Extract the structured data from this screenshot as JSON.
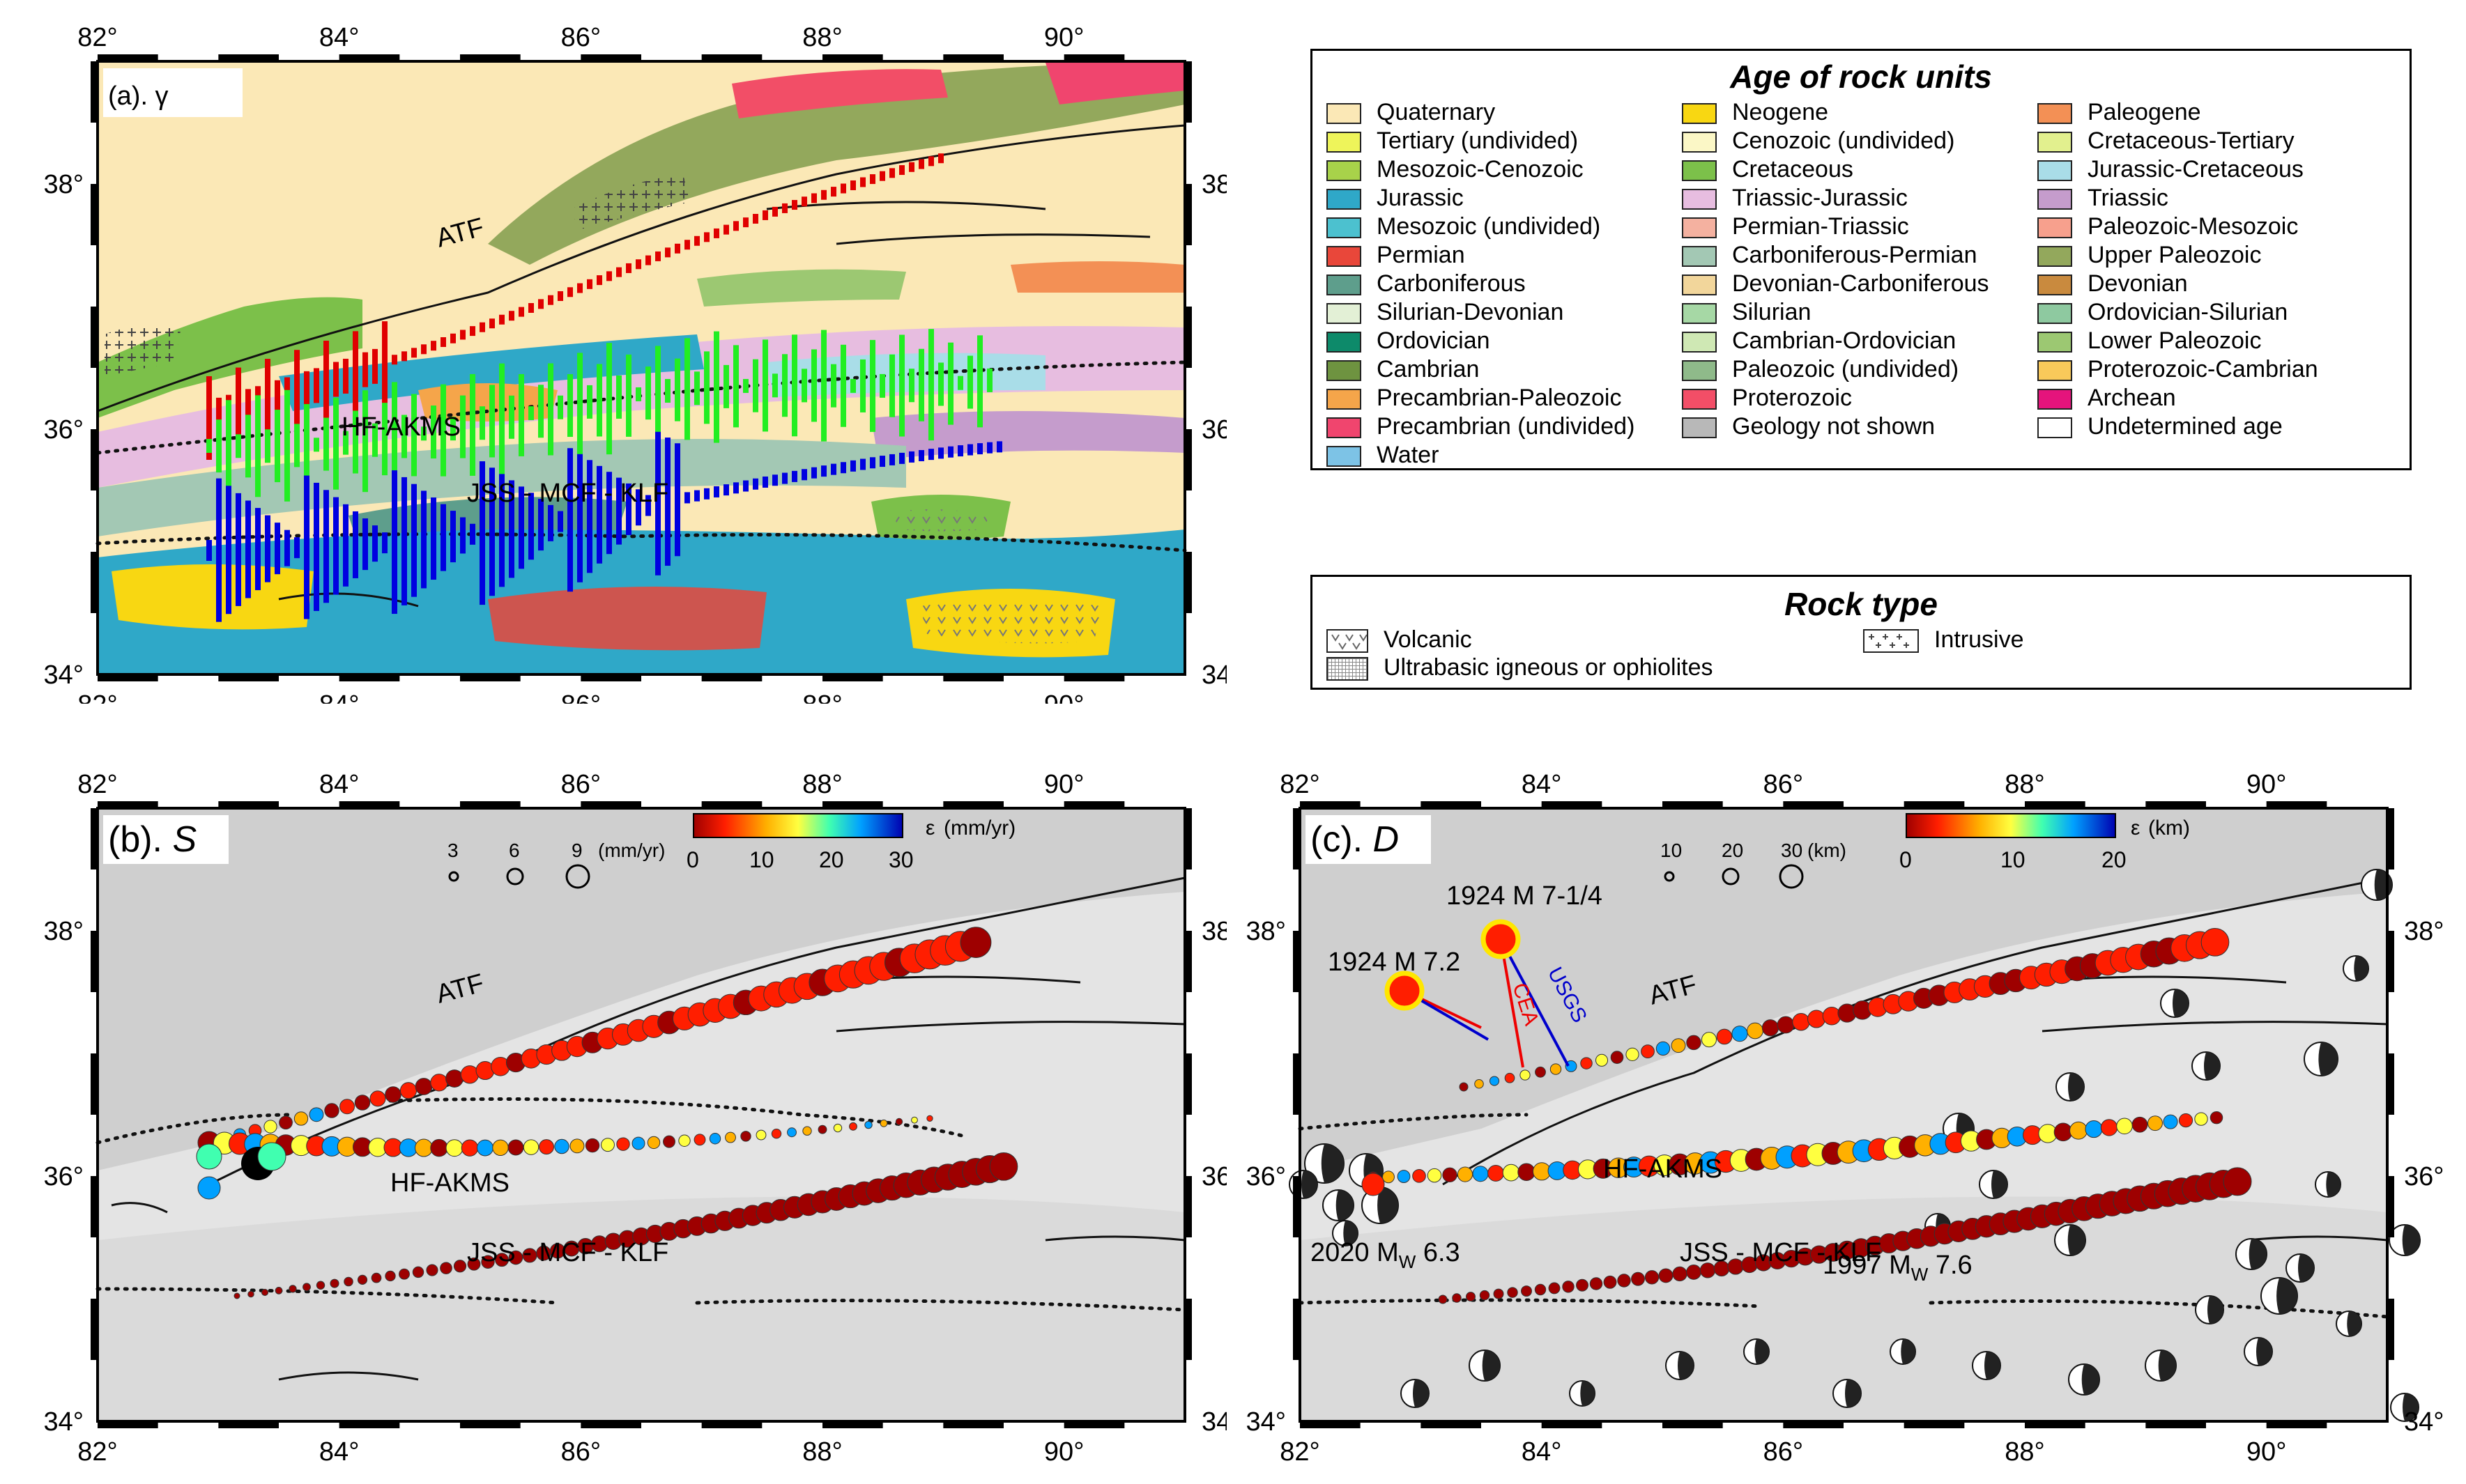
{
  "panels": [
    {
      "id": "a",
      "label": "(a). γ"
    },
    {
      "id": "b",
      "label": "(b). ",
      "label_var": "S"
    },
    {
      "id": "c",
      "label": "(c). ",
      "label_var": "D"
    }
  ],
  "axes": {
    "lon_ticks": [
      "82°",
      "84°",
      "86°",
      "88°",
      "90°"
    ],
    "lat_ticks": [
      "38°",
      "36°",
      "34°"
    ],
    "lon_range": [
      82,
      91
    ],
    "lat_range": [
      34,
      39
    ]
  },
  "faults": {
    "atf": "ATF",
    "hf": "HF-AKMS",
    "jss": "JSS - MCF - KLF"
  },
  "panel_b_scale": {
    "sizes": [
      "3",
      "6",
      "9"
    ],
    "size_unit": "(mm/yr)",
    "colorbar_label": "ε",
    "colorbar_unit": "(mm/yr)",
    "colorbar_ticks": [
      "0",
      "10",
      "20",
      "30"
    ]
  },
  "panel_c_scale": {
    "sizes": [
      "10",
      "20",
      "30"
    ],
    "size_unit": "(km)",
    "colorbar_label": "ε",
    "colorbar_unit": "(km)",
    "colorbar_ticks": [
      "0",
      "10",
      "20"
    ]
  },
  "events": {
    "e1924a": "1924  M 7.2",
    "e1924b": "1924  M 7-1/4",
    "cea": "CEA",
    "usgs": "USGS",
    "e2020_a": "2020 M",
    "e2020_sub": "W",
    "e2020_b": " 6.3",
    "e1997_a": "1997 M",
    "e1997_sub": "W",
    "e1997_b": " 7.6"
  },
  "age_legend": {
    "title": "Age of rock units",
    "columns": [
      [
        {
          "label": "Quaternary",
          "color": "#fbe8b6"
        },
        {
          "label": "Tertiary (undivided)",
          "color": "#eef45a"
        },
        {
          "label": "Mesozoic-Cenozoic",
          "color": "#a8d24a"
        },
        {
          "label": "Jurassic",
          "color": "#2fa8c8"
        },
        {
          "label": "Mesozoic (undivided)",
          "color": "#4cc1cf"
        },
        {
          "label": "Permian",
          "color": "#e9473a"
        },
        {
          "label": "Carboniferous",
          "color": "#5e9e8c"
        },
        {
          "label": "Silurian-Devonian",
          "color": "#e3f0d6"
        },
        {
          "label": "Ordovician",
          "color": "#0d8a6a"
        },
        {
          "label": "Cambrian",
          "color": "#6e9340"
        },
        {
          "label": "Precambrian-Paleozoic",
          "color": "#f5a54a"
        },
        {
          "label": "Precambrian (undivided)",
          "color": "#f0456e"
        },
        {
          "label": "Water",
          "color": "#7dc3e6"
        }
      ],
      [
        {
          "label": "Neogene",
          "color": "#f8d712"
        },
        {
          "label": "Cenozoic (undivided)",
          "color": "#fbf7c6"
        },
        {
          "label": "Cretaceous",
          "color": "#7cc04a"
        },
        {
          "label": "Triassic-Jurassic",
          "color": "#e7bde0"
        },
        {
          "label": "Permian-Triassic",
          "color": "#f4b1a0"
        },
        {
          "label": "Carboniferous-Permian",
          "color": "#a3c8b4"
        },
        {
          "label": "Devonian-Carboniferous",
          "color": "#f2d69b"
        },
        {
          "label": "Silurian",
          "color": "#a6d8a5"
        },
        {
          "label": "Cambrian-Ordovician",
          "color": "#cfe8b4"
        },
        {
          "label": "Paleozoic (undivided)",
          "color": "#8fba8a"
        },
        {
          "label": "Proterozoic",
          "color": "#f24e67"
        },
        {
          "label": "Geology not shown",
          "color": "#b8b8b8"
        }
      ],
      [
        {
          "label": "Paleogene",
          "color": "#f39055"
        },
        {
          "label": "Cretaceous-Tertiary",
          "color": "#e2f08e"
        },
        {
          "label": "Jurassic-Cretaceous",
          "color": "#a9dde8"
        },
        {
          "label": "Triassic",
          "color": "#c59ccc"
        },
        {
          "label": "Paleozoic-Mesozoic",
          "color": "#f7a08d"
        },
        {
          "label": "Upper Paleozoic",
          "color": "#93a85c"
        },
        {
          "label": "Devonian",
          "color": "#c98a3e"
        },
        {
          "label": "Ordovician-Silurian",
          "color": "#8ec9a0"
        },
        {
          "label": "Lower Paleozoic",
          "color": "#9cc872"
        },
        {
          "label": "Proterozoic-Cambrian",
          "color": "#f9c95a"
        },
        {
          "label": "Archean",
          "color": "#e5147c"
        },
        {
          "label": "Undetermined age",
          "color": "#ffffff"
        }
      ]
    ]
  },
  "rock_legend": {
    "title": "Rock type",
    "items": [
      {
        "label": "Volcanic",
        "icon": "volcanic-pattern"
      },
      {
        "label": "Intrusive",
        "icon": "intrusive-pattern"
      },
      {
        "label": "Ultrabasic igneous or ophiolites",
        "icon": "ultrabasic-pattern"
      }
    ]
  }
}
